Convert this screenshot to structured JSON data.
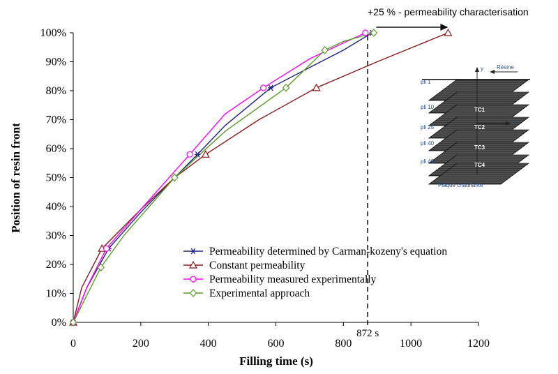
{
  "chart_data": {
    "type": "line",
    "xlabel": "Filling time (s)",
    "ylabel": "Position of resin front",
    "xlim": [
      0,
      1200
    ],
    "ylim": [
      0,
      100
    ],
    "x_ticks": [
      0,
      200,
      400,
      600,
      800,
      1000,
      1200
    ],
    "y_ticks": [
      0,
      10,
      20,
      30,
      40,
      50,
      60,
      70,
      80,
      90,
      100
    ],
    "y_tick_suffix": "%",
    "grid": false,
    "legend_position": "bottom-center",
    "series": [
      {
        "name": "Permeability determined by Carman-kozeny's equation",
        "color": "#1a237e",
        "marker": "asterisk",
        "x": [
          0,
          40,
          105,
          200,
          300,
          368,
          450,
          585,
          700,
          800,
          885
        ],
        "y": [
          0,
          12,
          25.5,
          38,
          50,
          58,
          68,
          81,
          88,
          94,
          100
        ],
        "markers_x": [
          0,
          105,
          368,
          585,
          885
        ],
        "markers_y": [
          0,
          25.5,
          58,
          81,
          100
        ]
      },
      {
        "name": "Constant permeability",
        "color": "#8b1a1a",
        "marker": "triangle",
        "x": [
          0,
          25,
          85,
          200,
          300,
          392,
          550,
          720,
          900,
          1110
        ],
        "y": [
          0,
          12,
          25.5,
          39,
          50,
          58,
          70,
          81,
          90,
          100
        ],
        "markers_x": [
          0,
          85,
          392,
          720,
          1110
        ],
        "markers_y": [
          0,
          25.5,
          58,
          81,
          100
        ]
      },
      {
        "name": "Permeability measured experimentally",
        "color": "#ff00ff",
        "marker": "circle",
        "x": [
          0,
          40,
          98,
          200,
          345,
          450,
          563,
          700,
          865
        ],
        "y": [
          0,
          12,
          25.5,
          39,
          58,
          72,
          81,
          91,
          100
        ],
        "markers_x": [
          0,
          98,
          345,
          563,
          865
        ],
        "markers_y": [
          0,
          25.5,
          58,
          81,
          100
        ]
      },
      {
        "name": "Experimental approach",
        "color": "#5a9a2a",
        "marker": "diamond",
        "x": [
          0,
          82,
          150,
          300,
          450,
          630,
          745,
          800,
          890
        ],
        "y": [
          0,
          19,
          30,
          50,
          66,
          81,
          94,
          97,
          100
        ],
        "markers_x": [
          0,
          82,
          300,
          630,
          745,
          890
        ],
        "markers_y": [
          0,
          19,
          50,
          81,
          94,
          100
        ]
      }
    ],
    "annotations": {
      "vline_x": 872,
      "vline_label": "872 s",
      "arrow_from_x": 885,
      "arrow_to_x": 1110,
      "arrow_y": 100,
      "arrow_label": "+25 % - permeability characterisation"
    },
    "inset": {
      "resin_label": "Résine",
      "y_axis": "y",
      "x_axis": "x",
      "plies": [
        "pli 1",
        "pli 10",
        "pli 25",
        "pli 40",
        "pli 46"
      ],
      "sensors": [
        "TC1",
        "TC2",
        "TC3",
        "TC4"
      ],
      "plate_label": "Plaque chauffante"
    }
  }
}
